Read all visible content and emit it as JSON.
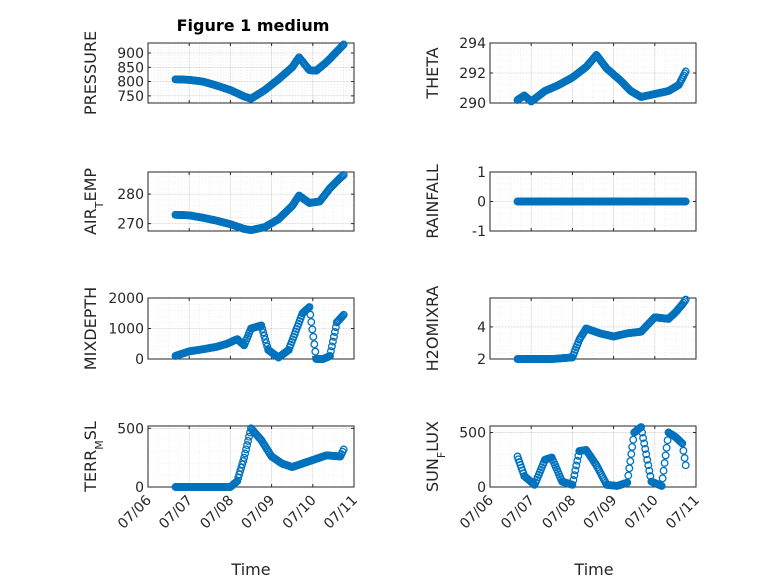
{
  "figure": {
    "title": "Figure 1 medium",
    "xlabel": "Time",
    "color": "#0072BD"
  },
  "chart_data": [
    {
      "type": "scatter",
      "ylabel": "PRESSURE",
      "ylim": [
        725,
        935
      ],
      "yticks": [
        750,
        800,
        850,
        900
      ],
      "xticks": [],
      "xlim": [
        "07/06",
        "07/11"
      ],
      "grid": true,
      "x": [
        "07/06 16:00",
        "07/07 00:00",
        "07/07 08:00",
        "07/07 16:00",
        "07/08 00:00",
        "07/08 08:00",
        "07/08 12:00",
        "07/08 20:00",
        "07/09 04:00",
        "07/09 12:00",
        "07/09 16:00",
        "07/09 22:00",
        "07/10 02:00",
        "07/10 08:00",
        "07/10 14:00",
        "07/10 18:00"
      ],
      "y": [
        808,
        806,
        800,
        786,
        770,
        748,
        740,
        770,
        808,
        850,
        885,
        840,
        838,
        868,
        905,
        930
      ]
    },
    {
      "type": "scatter",
      "ylabel": "THETA",
      "ylim": [
        290,
        294
      ],
      "yticks": [
        290,
        292,
        294
      ],
      "xticks": [],
      "xlim": [
        "07/06",
        "07/11"
      ],
      "grid": true,
      "x": [
        "07/06 16:00",
        "07/06 20:00",
        "07/07 00:00",
        "07/07 08:00",
        "07/07 16:00",
        "07/08 00:00",
        "07/08 08:00",
        "07/08 14:00",
        "07/08 20:00",
        "07/09 04:00",
        "07/09 10:00",
        "07/09 16:00",
        "07/10 00:00",
        "07/10 08:00",
        "07/10 14:00",
        "07/10 18:00"
      ],
      "y": [
        290.2,
        290.5,
        290.1,
        290.8,
        291.2,
        291.7,
        292.4,
        293.2,
        292.3,
        291.5,
        290.8,
        290.4,
        290.6,
        290.8,
        291.2,
        292.1
      ]
    },
    {
      "type": "scatter",
      "ylabel": "AIR_TEMP",
      "ylim": [
        267.5,
        287.5
      ],
      "yticks": [
        270,
        280
      ],
      "xticks": [],
      "xlim": [
        "07/06",
        "07/11"
      ],
      "grid": true,
      "x": [
        "07/06 16:00",
        "07/07 00:00",
        "07/07 08:00",
        "07/07 16:00",
        "07/08 00:00",
        "07/08 08:00",
        "07/08 12:00",
        "07/08 20:00",
        "07/09 04:00",
        "07/09 12:00",
        "07/09 16:00",
        "07/09 22:00",
        "07/10 04:00",
        "07/10 10:00",
        "07/10 16:00",
        "07/10 18:00"
      ],
      "y": [
        273,
        272.8,
        272,
        271,
        269.8,
        268.2,
        267.8,
        268.8,
        271.5,
        276,
        279.5,
        277,
        277.5,
        282,
        285.5,
        286.5
      ]
    },
    {
      "type": "scatter",
      "ylabel": "RAINFALL",
      "ylim": [
        -1,
        1
      ],
      "yticks": [
        -1,
        0,
        1
      ],
      "xticks": [],
      "xlim": [
        "07/06",
        "07/11"
      ],
      "grid": true,
      "x": [
        "07/06 16:00",
        "07/07 00:00",
        "07/07 12:00",
        "07/08 00:00",
        "07/08 12:00",
        "07/09 00:00",
        "07/09 12:00",
        "07/10 00:00",
        "07/10 12:00",
        "07/10 18:00"
      ],
      "y": [
        0,
        0,
        0,
        0,
        0,
        0,
        0,
        0,
        0,
        0
      ]
    },
    {
      "type": "scatter",
      "ylabel": "MIXDEPTH",
      "ylim": [
        0,
        2000
      ],
      "yticks": [
        0,
        1000,
        2000
      ],
      "xticks": [],
      "xlim": [
        "07/06",
        "07/11"
      ],
      "grid": true,
      "x": [
        "07/06 16:00",
        "07/07 00:00",
        "07/07 08:00",
        "07/07 16:00",
        "07/07 22:00",
        "07/08 04:00",
        "07/08 08:00",
        "07/08 12:00",
        "07/08 18:00",
        "07/08 22:00",
        "07/09 04:00",
        "07/09 10:00",
        "07/09 14:00",
        "07/09 18:00",
        "07/09 22:00",
        "07/10 02:00",
        "07/10 06:00",
        "07/10 10:00",
        "07/10 14:00",
        "07/10 18:00"
      ],
      "y": [
        100,
        250,
        320,
        400,
        500,
        650,
        450,
        1000,
        1100,
        300,
        50,
        300,
        900,
        1500,
        1700,
        0,
        0,
        100,
        1200,
        1450
      ]
    },
    {
      "type": "scatter",
      "ylabel": "H2OMIXRA",
      "ylim": [
        2,
        5.8
      ],
      "yticks": [
        2,
        4
      ],
      "xticks": [],
      "xlim": [
        "07/06",
        "07/11"
      ],
      "grid": true,
      "x": [
        "07/06 16:00",
        "07/07 00:00",
        "07/07 12:00",
        "07/08 00:00",
        "07/08 04:00",
        "07/08 08:00",
        "07/08 16:00",
        "07/09 00:00",
        "07/09 08:00",
        "07/09 16:00",
        "07/10 00:00",
        "07/10 08:00",
        "07/10 12:00",
        "07/10 16:00",
        "07/10 18:00"
      ],
      "y": [
        2.0,
        2.0,
        2.0,
        2.1,
        3.2,
        3.9,
        3.6,
        3.4,
        3.6,
        3.7,
        4.6,
        4.5,
        4.9,
        5.4,
        5.7
      ]
    },
    {
      "type": "scatter",
      "ylabel": "TERR_MSL",
      "ylim": [
        0,
        520
      ],
      "yticks": [
        0,
        500
      ],
      "xticks": [
        "07/06",
        "07/07",
        "07/08",
        "07/09",
        "07/10",
        "07/11"
      ],
      "xlim": [
        "07/06",
        "07/11"
      ],
      "grid": true,
      "x": [
        "07/06 16:00",
        "07/07 00:00",
        "07/07 12:00",
        "07/08 00:00",
        "07/08 04:00",
        "07/08 08:00",
        "07/08 12:00",
        "07/08 18:00",
        "07/09 00:00",
        "07/09 06:00",
        "07/09 12:00",
        "07/09 18:00",
        "07/10 00:00",
        "07/10 08:00",
        "07/10 16:00",
        "07/10 18:00"
      ],
      "y": [
        0,
        0,
        0,
        0,
        50,
        250,
        500,
        400,
        260,
        200,
        170,
        200,
        230,
        270,
        260,
        320
      ]
    },
    {
      "type": "scatter",
      "ylabel": "SUN_FLUX",
      "ylim": [
        0,
        560
      ],
      "yticks": [
        0,
        500
      ],
      "xticks": [
        "07/06",
        "07/07",
        "07/08",
        "07/09",
        "07/10",
        "07/11"
      ],
      "xlim": [
        "07/06",
        "07/11"
      ],
      "grid": true,
      "x": [
        "07/06 16:00",
        "07/06 20:00",
        "07/07 02:00",
        "07/07 08:00",
        "07/07 12:00",
        "07/07 18:00",
        "07/08 00:00",
        "07/08 04:00",
        "07/08 08:00",
        "07/08 14:00",
        "07/08 20:00",
        "07/09 02:00",
        "07/09 08:00",
        "07/09 12:00",
        "07/09 16:00",
        "07/09 22:00",
        "07/10 04:00",
        "07/10 08:00",
        "07/10 12:00",
        "07/10 16:00",
        "07/10 18:00"
      ],
      "y": [
        280,
        100,
        20,
        250,
        270,
        50,
        20,
        330,
        340,
        200,
        20,
        10,
        40,
        500,
        550,
        50,
        10,
        500,
        460,
        400,
        200
      ]
    }
  ]
}
